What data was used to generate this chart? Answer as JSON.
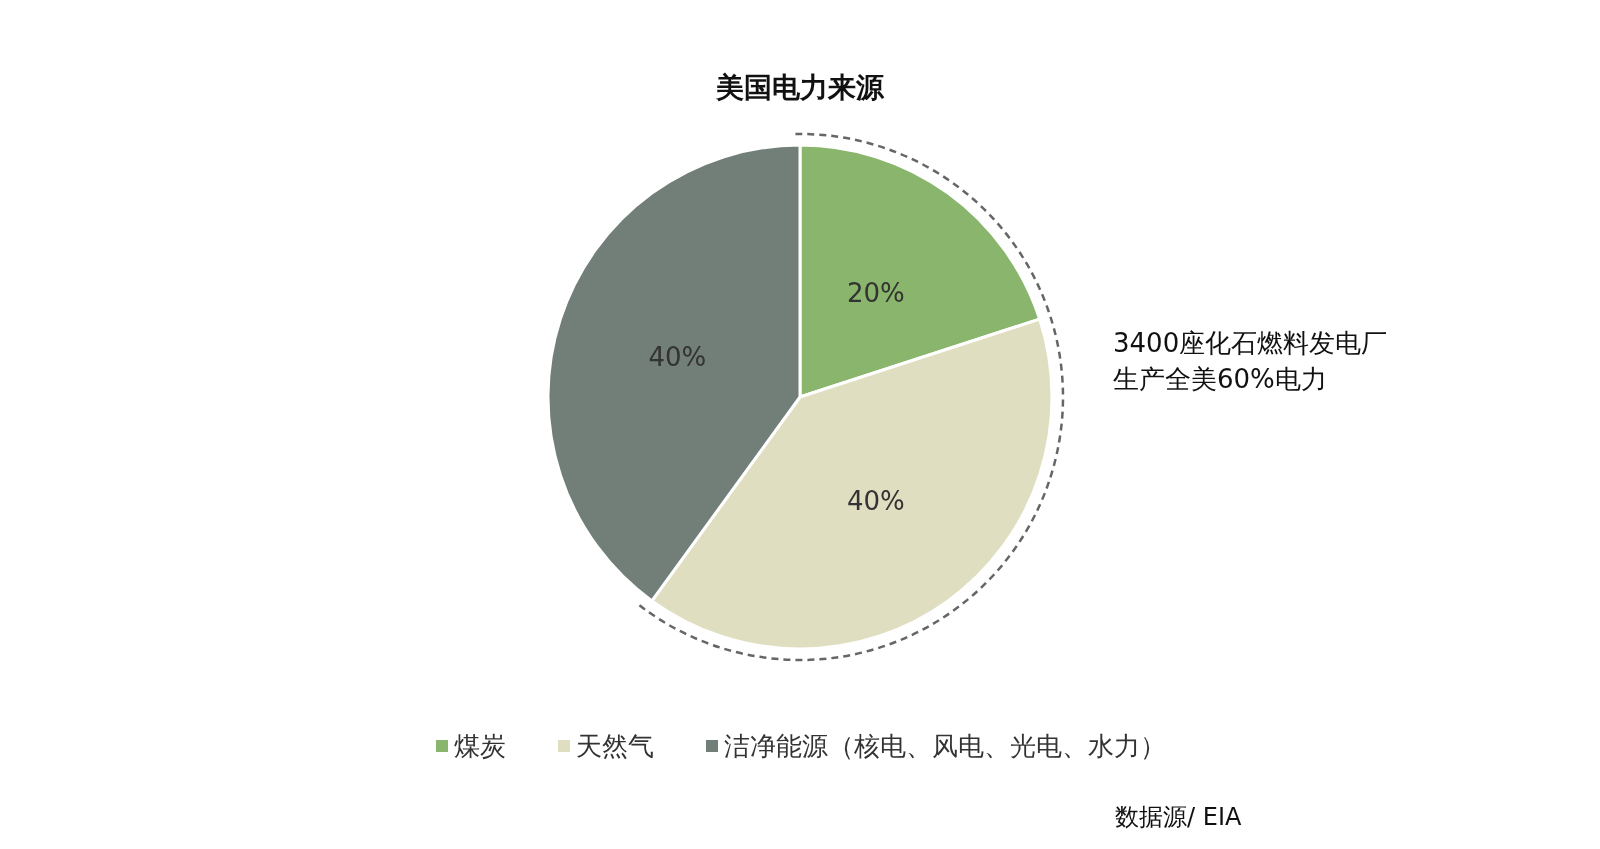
{
  "chart_data": {
    "type": "pie",
    "title": "美国电力来源",
    "categories": [
      "煤炭",
      "天然气",
      "洁净能源（核电、风电、光电、水力）"
    ],
    "values": [
      20,
      40,
      40
    ],
    "colors": [
      "#8ab56c",
      "#e0dec0",
      "#717f78"
    ],
    "value_labels": [
      "20%",
      "40%",
      "40%"
    ],
    "legend": "bottom",
    "annotations": [
      "3400座化石燃料发电厂",
      "生产全美60%电力",
      "数据源/ EIA"
    ]
  }
}
